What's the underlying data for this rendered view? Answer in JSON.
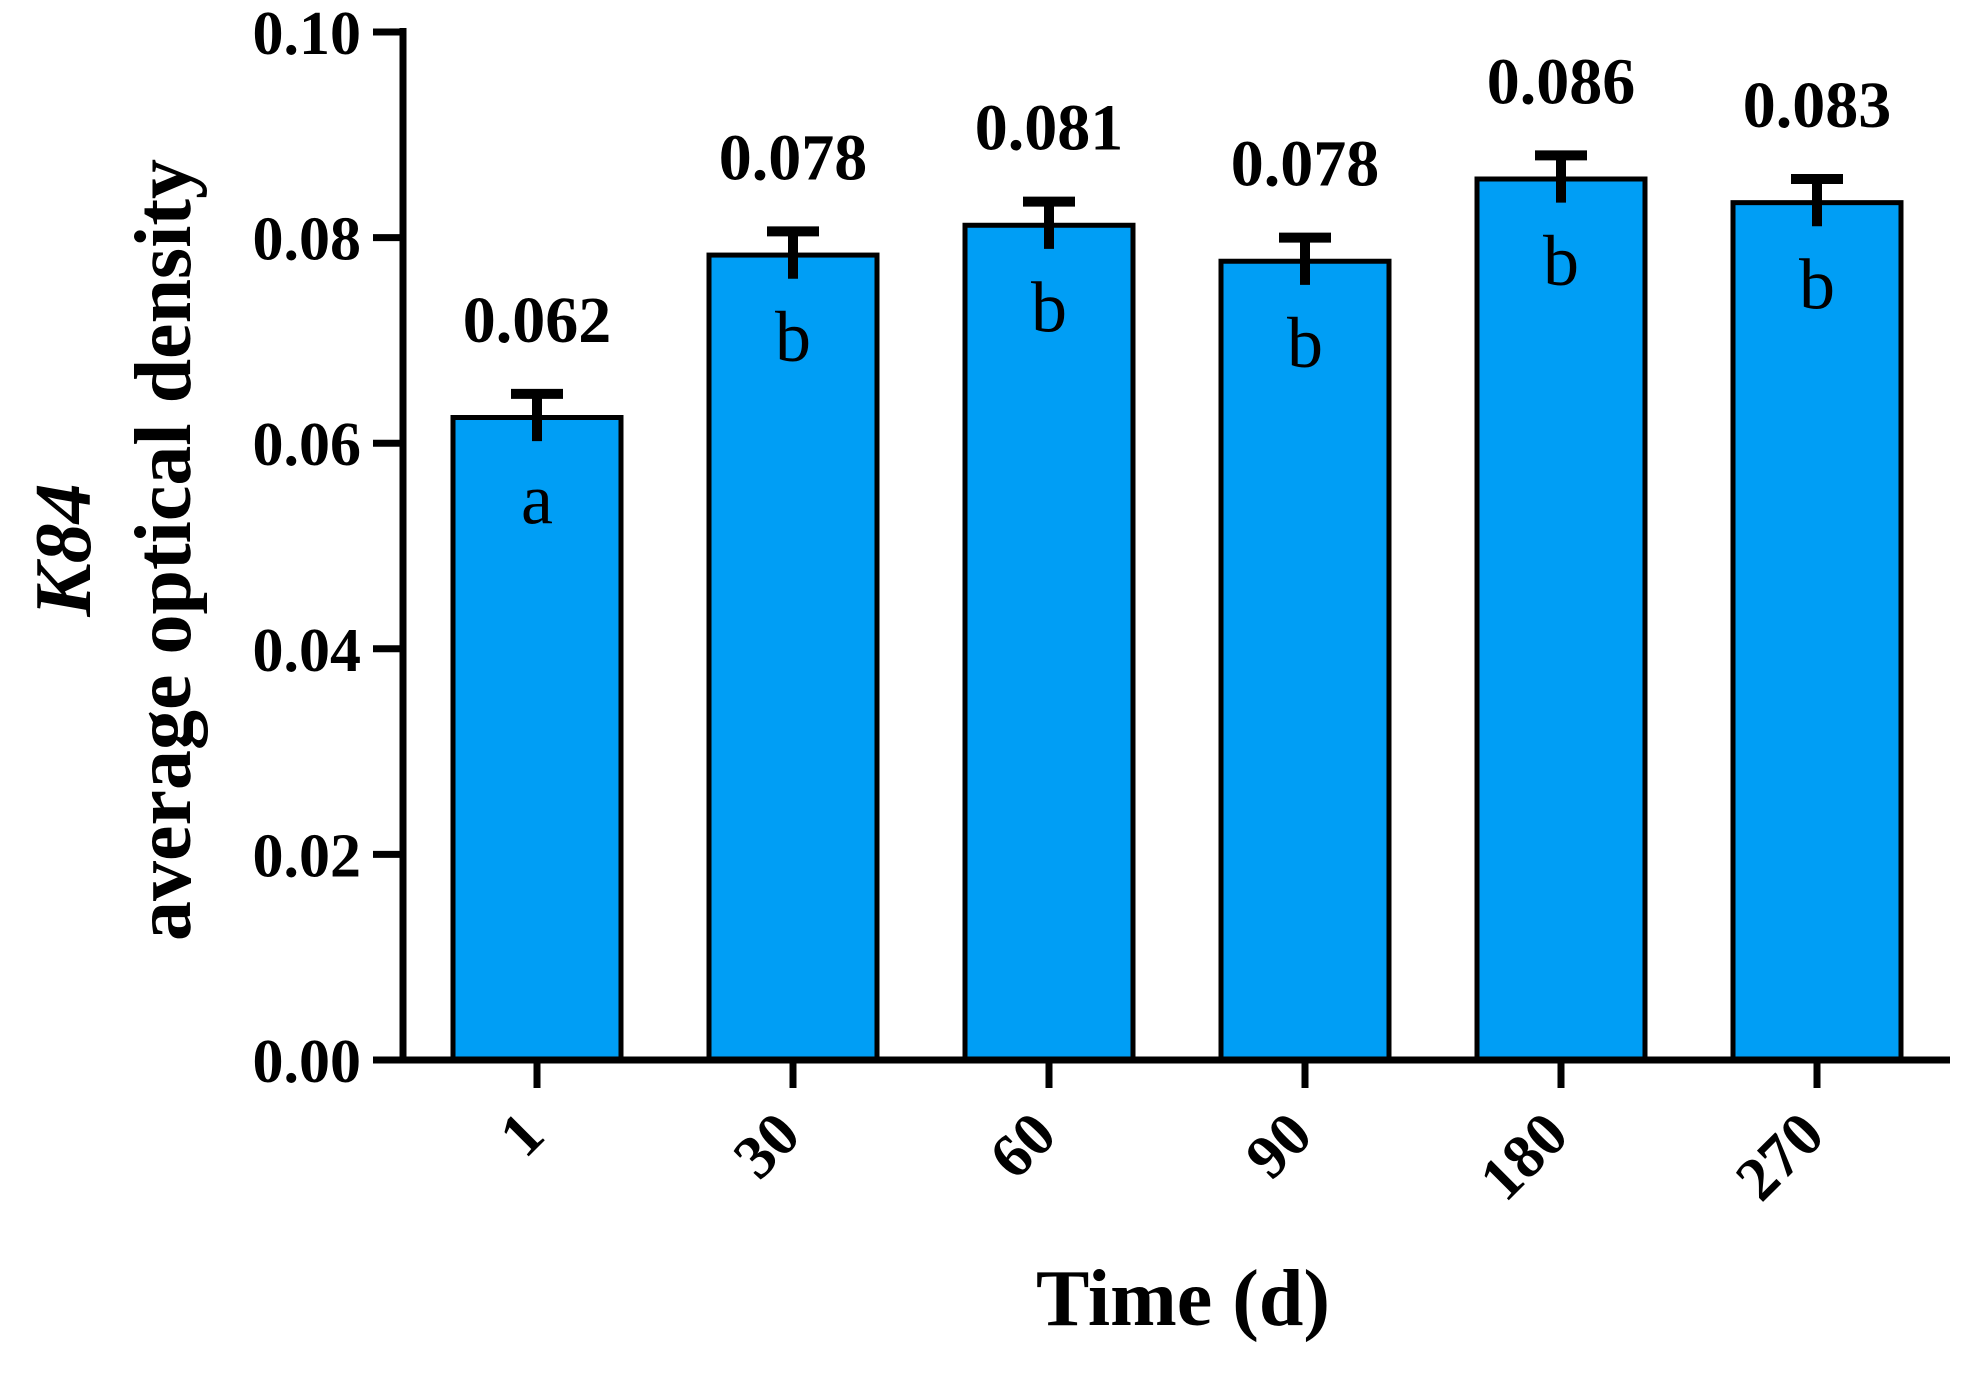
{
  "chart_data": {
    "type": "bar",
    "categories": [
      "1",
      "30",
      "60",
      "90",
      "180",
      "270"
    ],
    "values": [
      0.0625,
      0.0783,
      0.0812,
      0.0777,
      0.0857,
      0.0834
    ],
    "errors": [
      0.0023,
      0.0023,
      0.0023,
      0.0023,
      0.0023,
      0.0023
    ],
    "value_labels": [
      "0.062",
      "0.078",
      "0.081",
      "0.078",
      "0.086",
      "0.083"
    ],
    "group_letters": [
      "a",
      "b",
      "b",
      "b",
      "b",
      "b"
    ],
    "xlabel": "Time (d)",
    "ylabel_line1": "K84",
    "ylabel_line2": "average optical density",
    "ylim": [
      0,
      0.1
    ],
    "yticks": [
      "0.00",
      "0.02",
      "0.04",
      "0.06",
      "0.08",
      "0.10"
    ],
    "grid": false,
    "bar_color": "#009ef5",
    "edge_color": "#000000"
  }
}
